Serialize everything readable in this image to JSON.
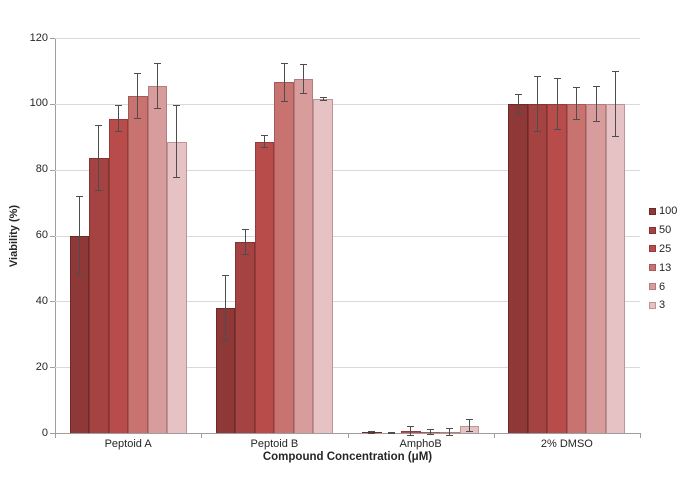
{
  "chart_data": {
    "type": "bar",
    "title": "",
    "xlabel": "Compound Concentration (μM)",
    "ylabel": "Viability (%)",
    "ylim": [
      0,
      120
    ],
    "yticks": [
      0,
      20,
      40,
      60,
      80,
      100,
      120
    ],
    "grid": true,
    "legend_position": "right",
    "categories": [
      "Peptoid A",
      "Peptoid B",
      "AmphoB",
      "2% DMSO"
    ],
    "series": [
      {
        "name": "100",
        "fill": "#8E3837",
        "border": "#6E2A29",
        "values": [
          60,
          38,
          0.2,
          100
        ],
        "errors": [
          12,
          10,
          0.4,
          3
        ]
      },
      {
        "name": "50",
        "fill": "#A54342",
        "border": "#833332",
        "values": [
          83.5,
          58,
          0.1,
          100
        ],
        "errors": [
          10,
          4,
          0.1,
          8.5
        ]
      },
      {
        "name": "25",
        "fill": "#B84C4A",
        "border": "#933C3A",
        "values": [
          95.5,
          88.5,
          0.6,
          100
        ],
        "errors": [
          4,
          2,
          1.5,
          8
        ]
      },
      {
        "name": "13",
        "fill": "#C97371",
        "border": "#A35A58",
        "values": [
          102.5,
          106.5,
          0.3,
          100
        ],
        "errors": [
          7,
          6,
          1,
          5
        ]
      },
      {
        "name": "6",
        "fill": "#D79C9B",
        "border": "#B27E7D",
        "values": [
          105.5,
          107.5,
          0.3,
          100
        ],
        "errors": [
          7,
          4.5,
          1.2,
          5.5
        ]
      },
      {
        "name": "3",
        "fill": "#E6C2C4",
        "border": "#BD9597",
        "values": [
          88.5,
          101.5,
          2.2,
          100
        ],
        "errors": [
          11,
          0.7,
          2,
          10
        ]
      }
    ],
    "error_bar_color": "#4D4D4D",
    "axis_color": "#9E9E9E",
    "gridline_color": "#D9D9D9",
    "text_color": "#262626"
  }
}
